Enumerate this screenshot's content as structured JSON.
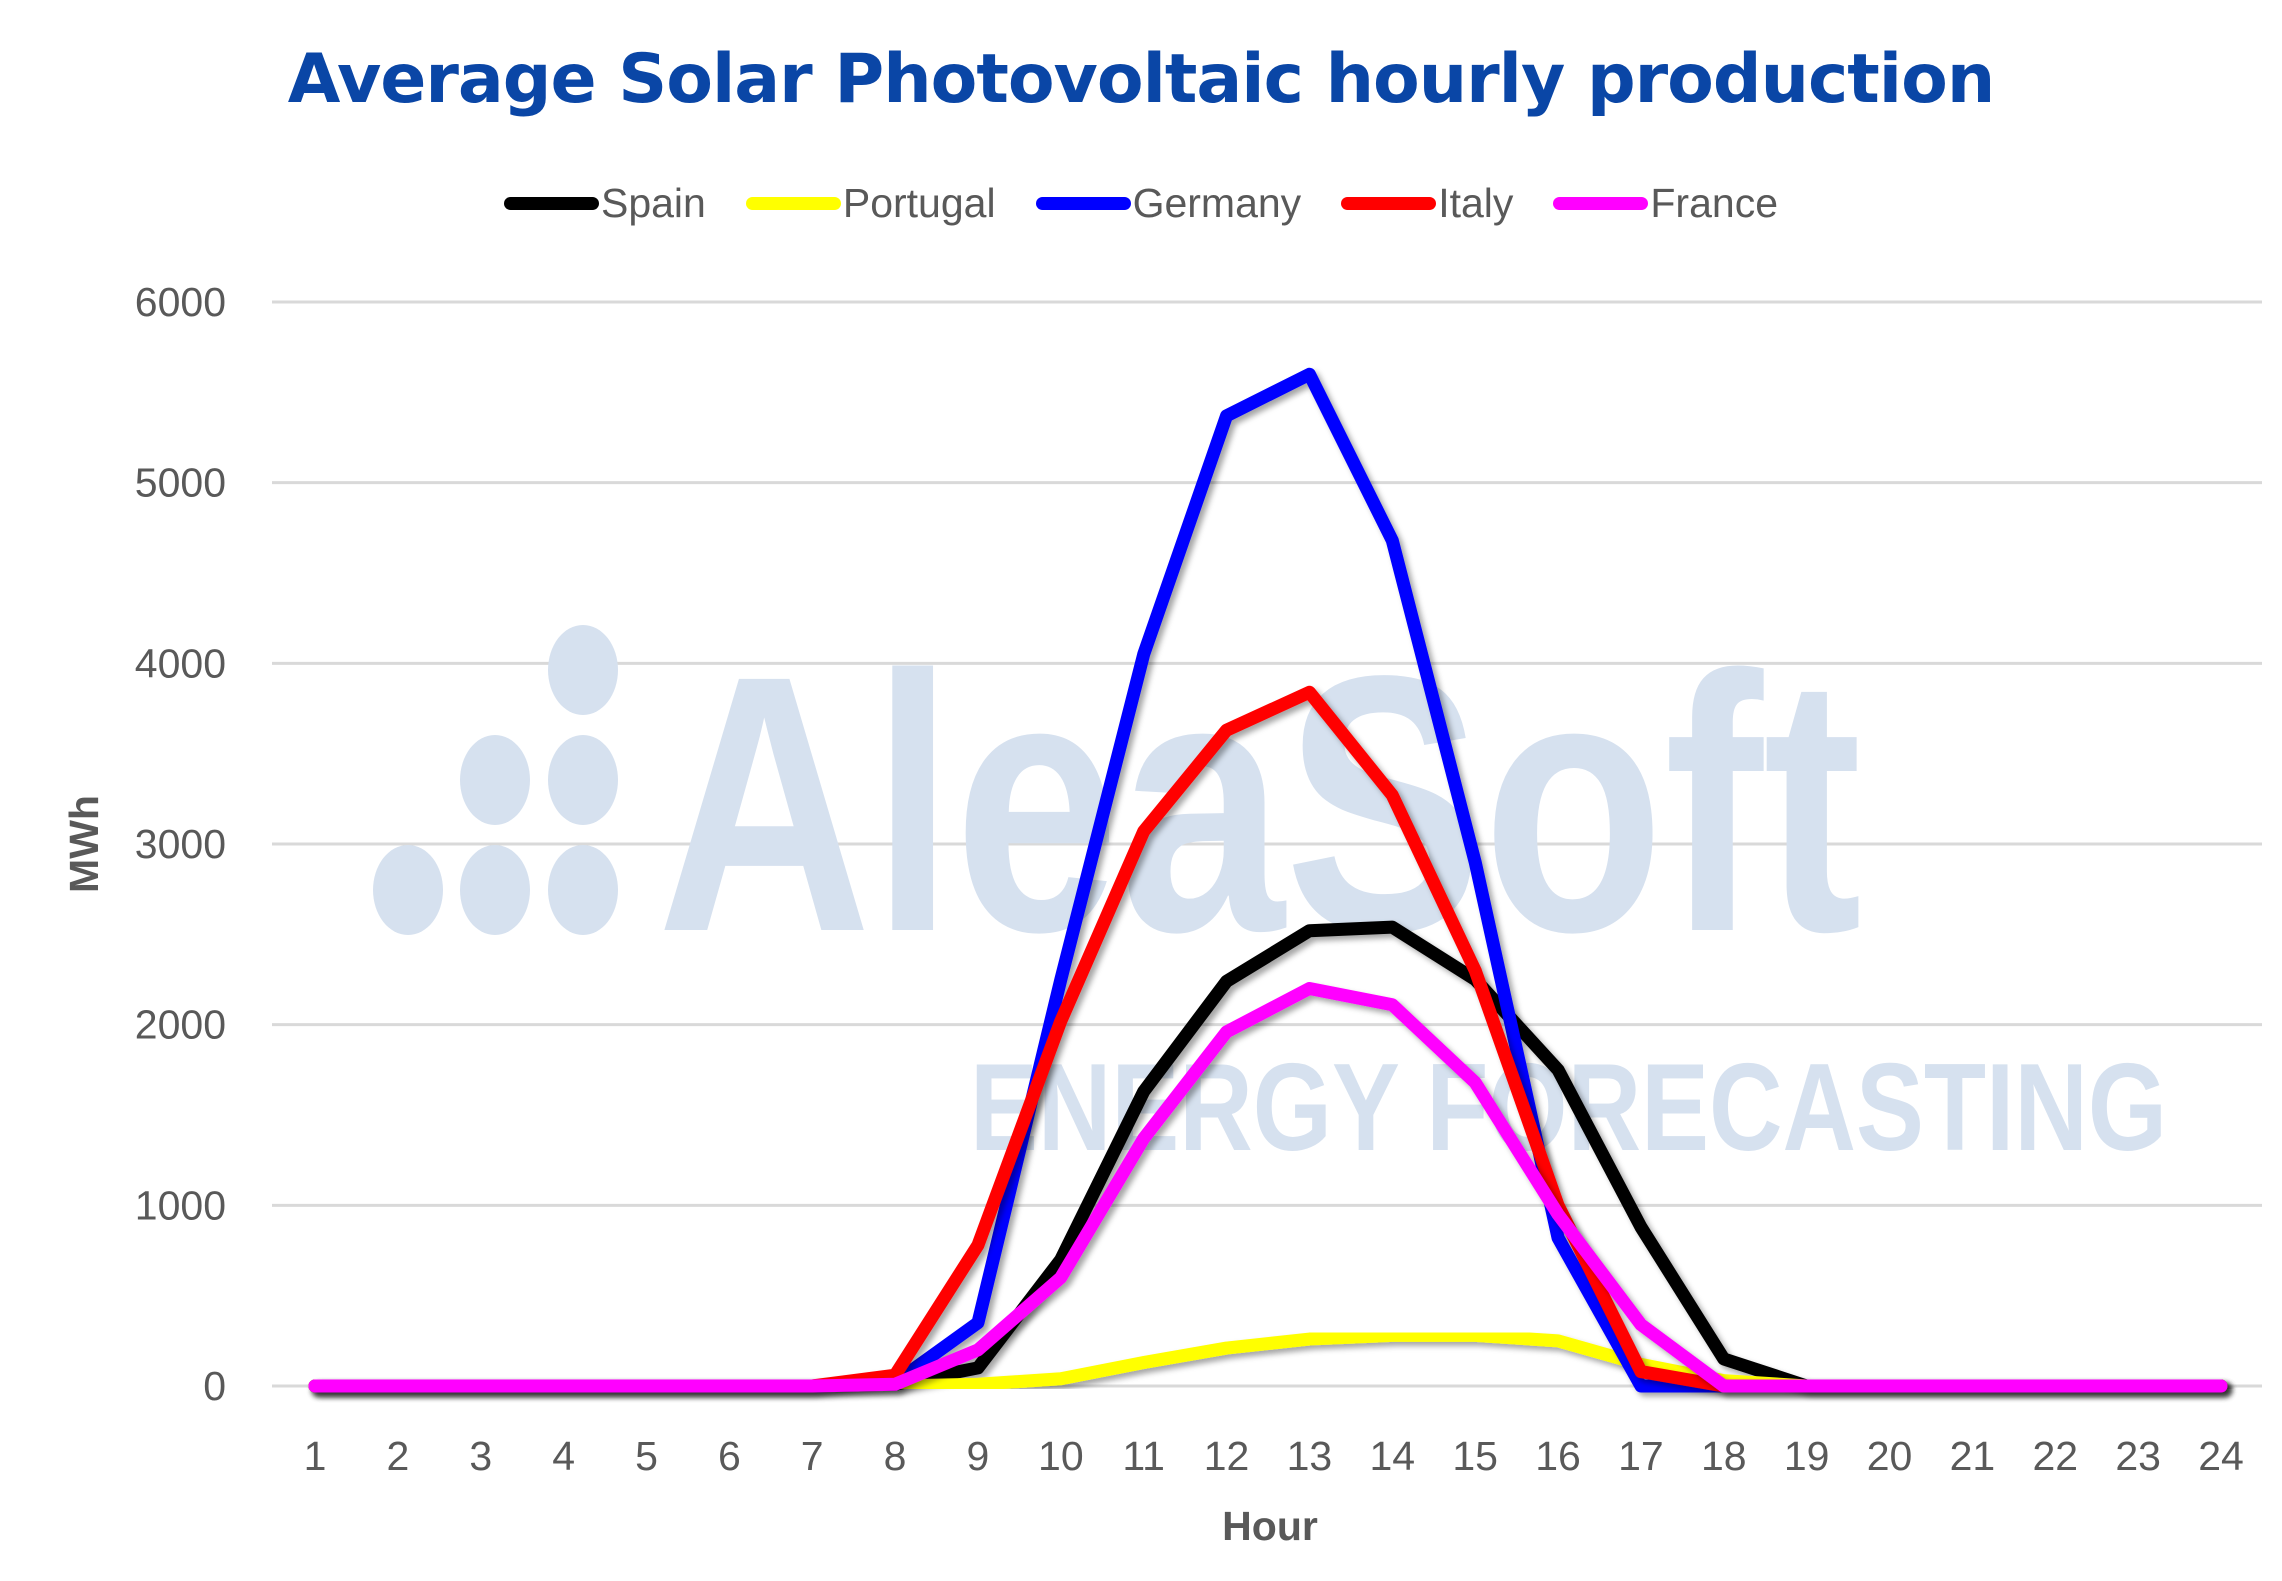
{
  "chart_data": {
    "type": "line",
    "title": "Average Solar Photovoltaic hourly production",
    "xlabel": "Hour",
    "ylabel": "MWh",
    "ylim": [
      0,
      6000
    ],
    "yticks": [
      0,
      1000,
      2000,
      3000,
      4000,
      5000,
      6000
    ],
    "grid": true,
    "legend_position": "top",
    "x": [
      1,
      2,
      3,
      4,
      5,
      6,
      7,
      8,
      9,
      10,
      11,
      12,
      13,
      14,
      15,
      16,
      17,
      18,
      19,
      20,
      21,
      22,
      23,
      24
    ],
    "series": [
      {
        "name": "Spain",
        "color": "#000000",
        "values": [
          0,
          0,
          0,
          0,
          0,
          0,
          0,
          10,
          100,
          700,
          1630,
          2240,
          2520,
          2540,
          2250,
          1750,
          880,
          150,
          0,
          0,
          0,
          0,
          0,
          0
        ]
      },
      {
        "name": "Portugal",
        "color": "#ffff00",
        "values": [
          0,
          0,
          0,
          0,
          0,
          0,
          0,
          0,
          10,
          40,
          130,
          210,
          260,
          280,
          280,
          250,
          120,
          30,
          0,
          0,
          0,
          0,
          0,
          0
        ]
      },
      {
        "name": "Germany",
        "color": "#0000ff",
        "values": [
          0,
          0,
          0,
          0,
          0,
          0,
          0,
          20,
          350,
          2250,
          4050,
          5370,
          5600,
          4680,
          2900,
          820,
          0,
          0,
          0,
          0,
          0,
          0,
          0,
          0
        ]
      },
      {
        "name": "Italy",
        "color": "#ff0000",
        "values": [
          0,
          0,
          0,
          0,
          0,
          0,
          0,
          60,
          780,
          2020,
          3070,
          3630,
          3840,
          3270,
          2300,
          1000,
          80,
          0,
          0,
          0,
          0,
          0,
          0,
          0
        ]
      },
      {
        "name": "France",
        "color": "#ff00ff",
        "values": [
          0,
          0,
          0,
          0,
          0,
          0,
          0,
          10,
          200,
          600,
          1370,
          1960,
          2200,
          2110,
          1680,
          950,
          340,
          0,
          0,
          0,
          0,
          0,
          0,
          0
        ]
      }
    ]
  },
  "watermark": {
    "brand": "AleaSoft",
    "tagline": "ENERGY FORECASTING"
  }
}
